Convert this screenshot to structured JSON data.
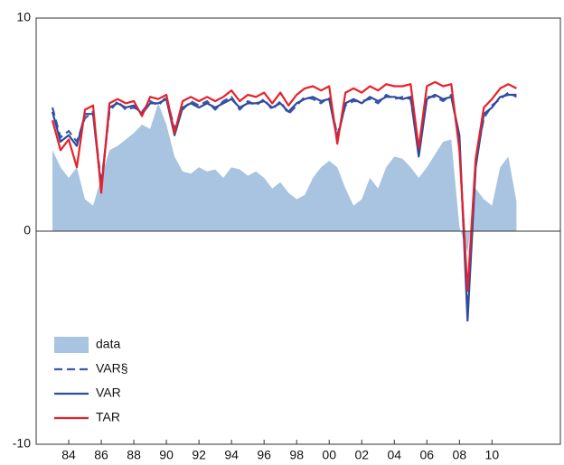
{
  "chart_data": {
    "type": "line",
    "x": [
      1983.0,
      1983.5,
      1984.0,
      1984.5,
      1985.0,
      1985.5,
      1986.0,
      1986.5,
      1987.0,
      1987.5,
      1988.0,
      1988.5,
      1989.0,
      1989.5,
      1990.0,
      1990.5,
      1991.0,
      1991.5,
      1992.0,
      1992.5,
      1993.0,
      1993.5,
      1994.0,
      1994.5,
      1995.0,
      1995.5,
      1996.0,
      1996.5,
      1997.0,
      1997.5,
      1998.0,
      1998.5,
      1999.0,
      1999.5,
      2000.0,
      2000.5,
      2001.0,
      2001.5,
      2002.0,
      2002.5,
      2003.0,
      2003.5,
      2004.0,
      2004.5,
      2005.0,
      2005.5,
      2006.0,
      2006.5,
      2007.0,
      2007.5,
      2008.0,
      2008.5,
      2009.0,
      2009.5,
      2010.0,
      2010.5,
      2011.0,
      2011.5
    ],
    "series": [
      {
        "name": "data",
        "style": "area",
        "color": "#a9c4e0",
        "values": [
          3.8,
          3.0,
          2.5,
          3.0,
          1.5,
          1.2,
          2.5,
          3.8,
          4.0,
          4.3,
          4.6,
          5.0,
          4.8,
          6.0,
          5.0,
          3.5,
          2.8,
          2.7,
          3.0,
          2.8,
          2.9,
          2.5,
          3.0,
          2.9,
          2.6,
          2.8,
          2.5,
          2.0,
          2.3,
          1.8,
          1.5,
          1.7,
          2.5,
          3.0,
          3.3,
          3.0,
          2.0,
          1.2,
          1.5,
          2.5,
          2.0,
          3.0,
          3.5,
          3.4,
          3.0,
          2.5,
          3.0,
          3.6,
          4.2,
          4.3,
          0.2,
          -1.0,
          2.0,
          1.5,
          1.2,
          3.0,
          3.5,
          1.4
        ]
      },
      {
        "name": "VAR§",
        "style": "dashed",
        "color": "#3a5ba8",
        "values": [
          5.8,
          4.4,
          4.7,
          4.2,
          5.3,
          5.6,
          2.2,
          5.6,
          6.1,
          5.7,
          5.8,
          5.6,
          6.1,
          5.9,
          6.3,
          4.8,
          5.7,
          6.1,
          5.9,
          6.1,
          5.7,
          6.1,
          6.3,
          5.7,
          6.1,
          5.9,
          6.2,
          5.7,
          6.1,
          5.5,
          5.9,
          6.3,
          6.2,
          6.0,
          6.3,
          4.5,
          5.9,
          6.1,
          6.1,
          6.2,
          6.0,
          6.4,
          6.2,
          6.3,
          6.2,
          3.7,
          6.3,
          6.3,
          6.1,
          6.4,
          4.2,
          -3.8,
          3.3,
          5.3,
          5.9,
          6.2,
          6.5,
          6.3
        ]
      },
      {
        "name": "VAR",
        "style": "solid",
        "color": "#2f4b9e",
        "values": [
          5.6,
          4.2,
          4.5,
          4.0,
          5.5,
          5.5,
          2.0,
          5.8,
          6.0,
          5.8,
          5.9,
          5.5,
          6.0,
          6.0,
          6.2,
          4.5,
          5.8,
          6.0,
          5.8,
          6.0,
          5.8,
          6.0,
          6.2,
          5.8,
          6.0,
          6.0,
          6.1,
          5.8,
          6.0,
          5.6,
          6.0,
          6.2,
          6.3,
          6.1,
          6.2,
          4.3,
          6.0,
          6.2,
          6.0,
          6.3,
          6.1,
          6.3,
          6.3,
          6.2,
          6.3,
          3.5,
          6.2,
          6.4,
          6.2,
          6.3,
          4.5,
          -4.2,
          3.0,
          5.5,
          5.8,
          6.3,
          6.4,
          6.4
        ]
      },
      {
        "name": "TAR",
        "style": "solid",
        "color": "#e8202a",
        "values": [
          5.2,
          3.8,
          4.3,
          3.0,
          5.7,
          5.9,
          1.8,
          6.0,
          6.2,
          6.0,
          6.1,
          5.4,
          6.3,
          6.2,
          6.4,
          4.6,
          6.1,
          6.3,
          6.1,
          6.3,
          6.1,
          6.3,
          6.6,
          6.1,
          6.4,
          6.3,
          6.5,
          6.0,
          6.5,
          5.9,
          6.4,
          6.7,
          6.8,
          6.6,
          6.8,
          4.1,
          6.5,
          6.7,
          6.5,
          6.8,
          6.6,
          6.9,
          6.8,
          6.8,
          6.9,
          3.9,
          6.8,
          7.0,
          6.8,
          6.9,
          3.8,
          -2.8,
          3.4,
          5.8,
          6.2,
          6.7,
          6.9,
          6.7
        ]
      }
    ],
    "xlim": [
      1982,
      2014.2
    ],
    "xticks": [
      {
        "value": 1984,
        "label": "84"
      },
      {
        "value": 1986,
        "label": "86"
      },
      {
        "value": 1988,
        "label": "88"
      },
      {
        "value": 1990,
        "label": "90"
      },
      {
        "value": 1992,
        "label": "92"
      },
      {
        "value": 1994,
        "label": "94"
      },
      {
        "value": 1996,
        "label": "96"
      },
      {
        "value": 1998,
        "label": "98"
      },
      {
        "value": 2000,
        "label": "00"
      },
      {
        "value": 2002,
        "label": "02"
      },
      {
        "value": 2004,
        "label": "04"
      },
      {
        "value": 2006,
        "label": "06"
      },
      {
        "value": 2008,
        "label": "08"
      },
      {
        "value": 2010,
        "label": "10"
      }
    ],
    "ylim": [
      -10,
      10
    ],
    "yticks": [
      -10,
      0,
      10
    ],
    "legend": "lower left"
  }
}
